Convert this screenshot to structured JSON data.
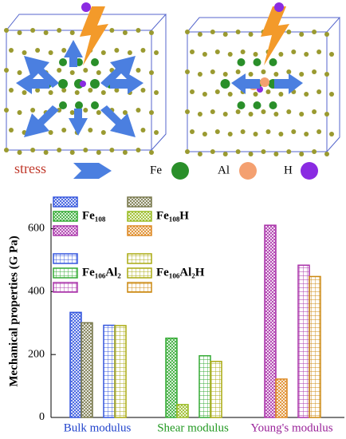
{
  "illustration": {
    "stress_label": "stress",
    "atoms": [
      "Fe",
      "Al",
      "H"
    ]
  },
  "chart_data": {
    "type": "bar",
    "y_label": "Mechanical properties (G Pa)",
    "categories": [
      "Bulk modulus",
      "Shear modulus",
      "Young's modulus"
    ],
    "category_colors": [
      "#2244cc",
      "#229922",
      "#992299"
    ],
    "series": [
      {
        "name": "Fe₁₀₈",
        "hatch": "cross",
        "color": [
          "#3355dd",
          "#33aa33",
          "#aa33aa"
        ],
        "values": [
          334,
          252,
          611
        ]
      },
      {
        "name": "Fe₁₀₈H",
        "hatch": "cross",
        "color": [
          "#77774a",
          "#99bb22",
          "#dd8822"
        ],
        "values": [
          301,
          41,
          122
        ]
      },
      {
        "name": "Fe₁₀₆Al₂",
        "hatch": "grid",
        "color": [
          "#3355dd",
          "#33aa33",
          "#aa33aa"
        ],
        "values": [
          293,
          196,
          484
        ]
      },
      {
        "name": "Fe₁₀₆Al₂H",
        "hatch": "grid",
        "color": [
          "#aaaa11",
          "#aaaa11",
          "#cc8811"
        ],
        "values": [
          292,
          178,
          448
        ]
      }
    ],
    "ylim": [
      0,
      680
    ],
    "yticks": [
      0,
      200,
      400,
      600
    ]
  }
}
